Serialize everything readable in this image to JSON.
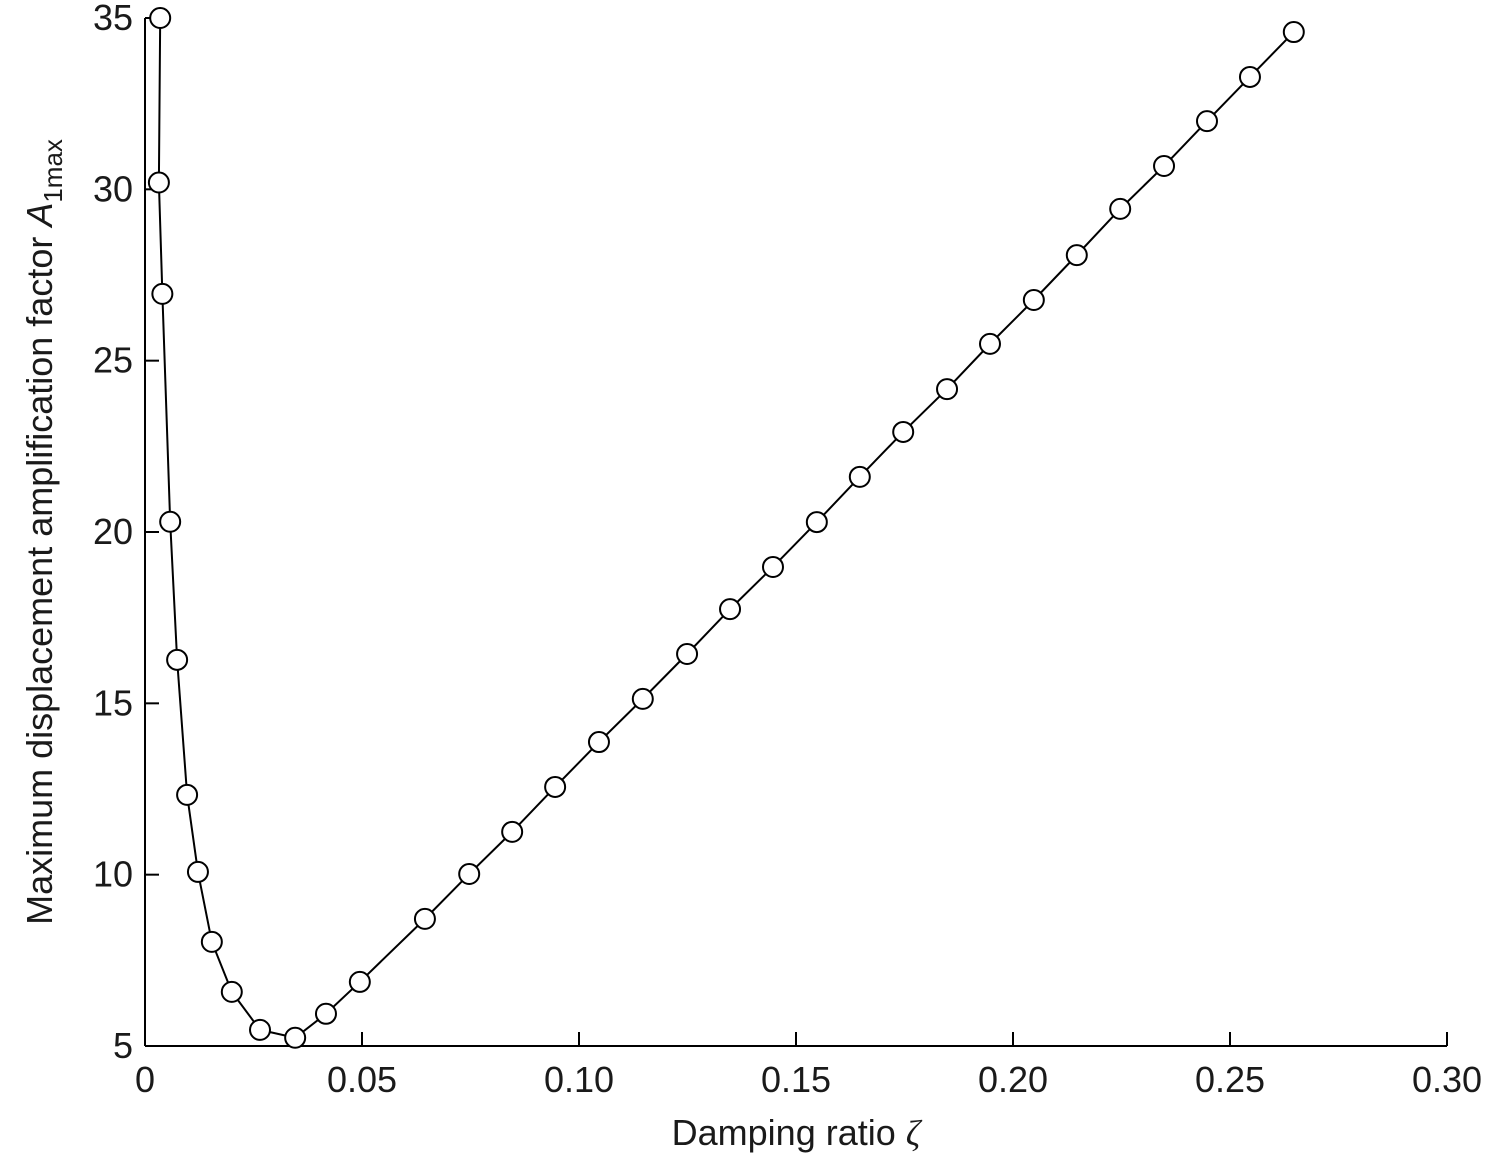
{
  "chart_data": {
    "type": "line",
    "x_label": "Damping ratio ",
    "x_label_symbol": "ζ",
    "y_label": "Maximum displacement amplification factor ",
    "y_label_symbol": "A",
    "y_label_subscript": "1max",
    "xlim": [
      0,
      0.3
    ],
    "ylim": [
      5,
      35
    ],
    "xticks": [
      0,
      0.05,
      {
        "value": 0.1,
        "label": "0.10"
      },
      0.15,
      {
        "value": 0.2,
        "label": "0.20"
      },
      0.25,
      {
        "value": 0.3,
        "label": "0.30"
      }
    ],
    "yticks": [
      5,
      10,
      15,
      20,
      25,
      30,
      35
    ],
    "grid": false,
    "series": [
      {
        "color": "#000000",
        "x": [
          0.0035,
          0.0032,
          0.004,
          0.0058,
          0.0074,
          0.0097,
          0.0122,
          0.0154,
          0.02,
          0.0265,
          0.0346,
          0.0417,
          0.0495,
          0.0645,
          0.0747,
          0.0846,
          0.0945,
          0.1046,
          0.1147,
          0.1249,
          0.1348,
          0.1447,
          0.1548,
          0.1647,
          0.1747,
          0.1848,
          0.1947,
          0.2048,
          0.2147,
          0.2247,
          0.2348,
          0.2447,
          0.2546,
          0.2647
        ],
        "values": [
          35.0,
          30.2,
          26.95,
          20.3,
          16.27,
          12.33,
          10.08,
          8.04,
          6.58,
          5.47,
          5.24,
          5.94,
          6.87,
          8.71,
          10.02,
          11.25,
          12.56,
          13.87,
          15.13,
          16.44,
          17.75,
          18.98,
          20.29,
          21.61,
          22.92,
          24.17,
          25.49,
          26.77,
          28.08,
          29.43,
          30.68,
          31.99,
          33.28,
          34.59
        ]
      }
    ]
  }
}
